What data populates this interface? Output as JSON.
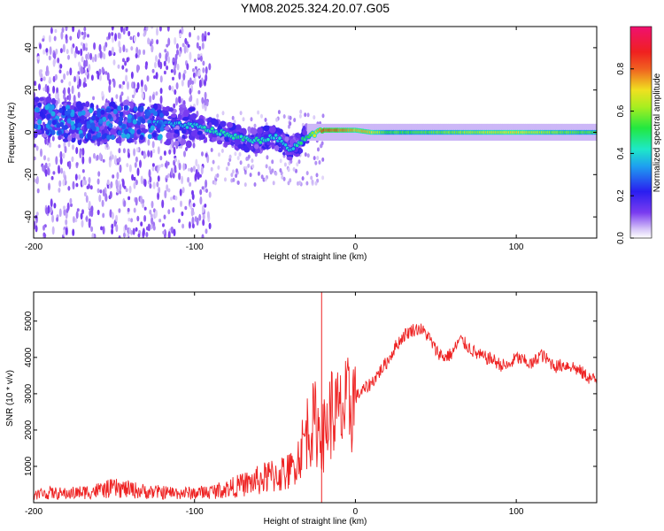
{
  "title": "YM08.2025.324.20.07.G05",
  "colors": {
    "snr_line": "#ee2222",
    "axis": "#000000",
    "background": "#ffffff",
    "spectrogram_low": "#e8d8f8",
    "spectrogram_mid": "#5a20e8"
  },
  "chart_data": [
    {
      "type": "heatmap",
      "name": "spectrogram",
      "title": "YM08.2025.324.20.07.G05",
      "xlabel": "Height of straight line (km)",
      "ylabel": "Frequency (Hz)",
      "xlim": [
        -200,
        150
      ],
      "ylim": [
        -50,
        50
      ],
      "xticks": [
        -200,
        -100,
        0,
        100
      ],
      "yticks": [
        -40,
        -20,
        0,
        20,
        40
      ],
      "colorbar": {
        "label": "Normalized spectral amplitude",
        "range": [
          0,
          1
        ],
        "ticks": [
          0.0,
          0.2,
          0.4,
          0.6,
          0.8
        ],
        "colormap": "hsv-like: white/purple(0) -> blue -> cyan -> green -> yellow -> red -> magenta(1)"
      },
      "ridge": {
        "description": "dominant frequency ridge vs height",
        "x": [
          -200,
          -180,
          -160,
          -140,
          -120,
          -100,
          -90,
          -80,
          -70,
          -60,
          -50,
          -40,
          -35,
          -30,
          -20,
          -10,
          0,
          10,
          20,
          40,
          60,
          80,
          100,
          120,
          150
        ],
        "y": [
          8,
          5,
          4,
          5,
          4,
          3,
          1,
          -1,
          -3,
          -4,
          -2,
          -8,
          -5,
          -2,
          1,
          1,
          1,
          0,
          0,
          0,
          0,
          0,
          0,
          0,
          0
        ],
        "amplitude": [
          0.25,
          0.3,
          0.3,
          0.3,
          0.35,
          0.4,
          0.45,
          0.45,
          0.45,
          0.45,
          0.4,
          0.4,
          0.45,
          0.5,
          0.85,
          0.8,
          0.75,
          0.7,
          0.55,
          0.55,
          0.6,
          0.65,
          0.7,
          0.6,
          0.55
        ]
      }
    },
    {
      "type": "line",
      "name": "snr",
      "xlabel": "Height of straight line (km)",
      "ylabel": "SNR (10 * v/v)",
      "xlim": [
        -200,
        150
      ],
      "ylim": [
        0,
        5800
      ],
      "xticks": [
        -200,
        -100,
        0,
        100
      ],
      "yticks": [
        1000,
        2000,
        3000,
        4000,
        5000
      ],
      "series": [
        {
          "name": "SNR",
          "x": [
            -200,
            -190,
            -180,
            -170,
            -160,
            -150,
            -140,
            -130,
            -120,
            -110,
            -100,
            -90,
            -80,
            -70,
            -60,
            -50,
            -40,
            -35,
            -30,
            -25,
            -20,
            -15,
            -10,
            -5,
            0,
            5,
            10,
            15,
            20,
            25,
            30,
            35,
            40,
            45,
            50,
            55,
            60,
            65,
            70,
            75,
            80,
            85,
            90,
            95,
            100,
            105,
            110,
            115,
            120,
            125,
            130,
            135,
            140,
            145,
            150
          ],
          "values": [
            250,
            280,
            260,
            300,
            350,
            420,
            380,
            320,
            300,
            280,
            280,
            320,
            400,
            520,
            650,
            800,
            900,
            1300,
            2000,
            2200,
            1800,
            2500,
            2400,
            2600,
            2900,
            3100,
            3300,
            3600,
            3900,
            4300,
            4600,
            4750,
            4800,
            4600,
            4200,
            4000,
            4100,
            4500,
            4300,
            4100,
            4000,
            3950,
            3800,
            3750,
            4000,
            3900,
            3800,
            4100,
            3900,
            3750,
            3800,
            3750,
            3600,
            3450,
            3350
          ]
        },
        {
          "name": "SNR spike",
          "x": [
            -21
          ],
          "values": [
            5800
          ]
        }
      ]
    }
  ]
}
